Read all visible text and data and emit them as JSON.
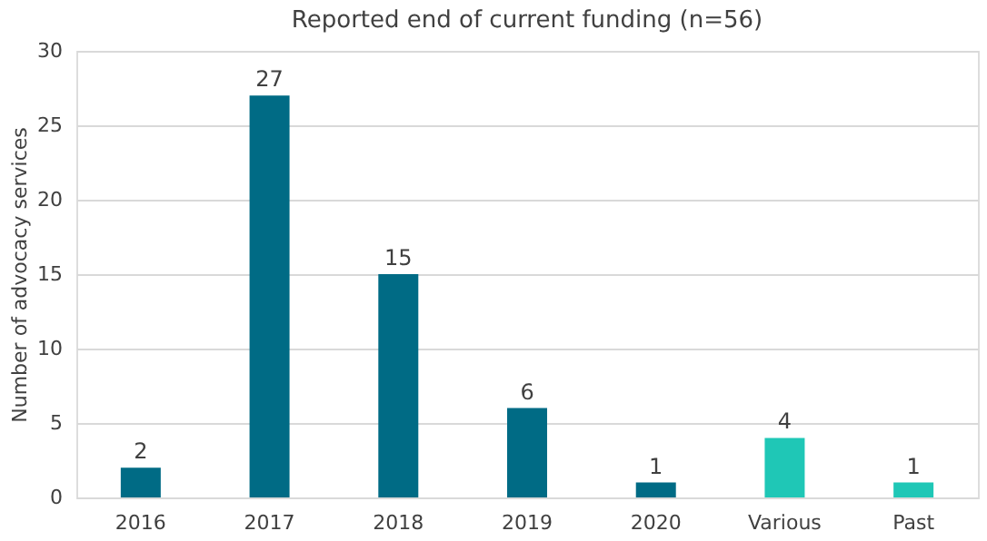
{
  "chart_data": {
    "type": "bar",
    "title": "Reported  end of current funding (n=56)",
    "ylabel": "Number of advocacy services",
    "categories": [
      "2016",
      "2017",
      "2018",
      "2019",
      "2020",
      "Various",
      "Past"
    ],
    "values": [
      2,
      27,
      15,
      6,
      1,
      4,
      1
    ],
    "colors": [
      "#006b85",
      "#006b85",
      "#006b85",
      "#006b85",
      "#006b85",
      "#1fc7b6",
      "#1fc7b6"
    ],
    "ylim": [
      0,
      30
    ],
    "yticks": [
      0,
      5,
      10,
      15,
      20,
      25,
      30
    ],
    "grid": "y",
    "data_labels": true
  }
}
